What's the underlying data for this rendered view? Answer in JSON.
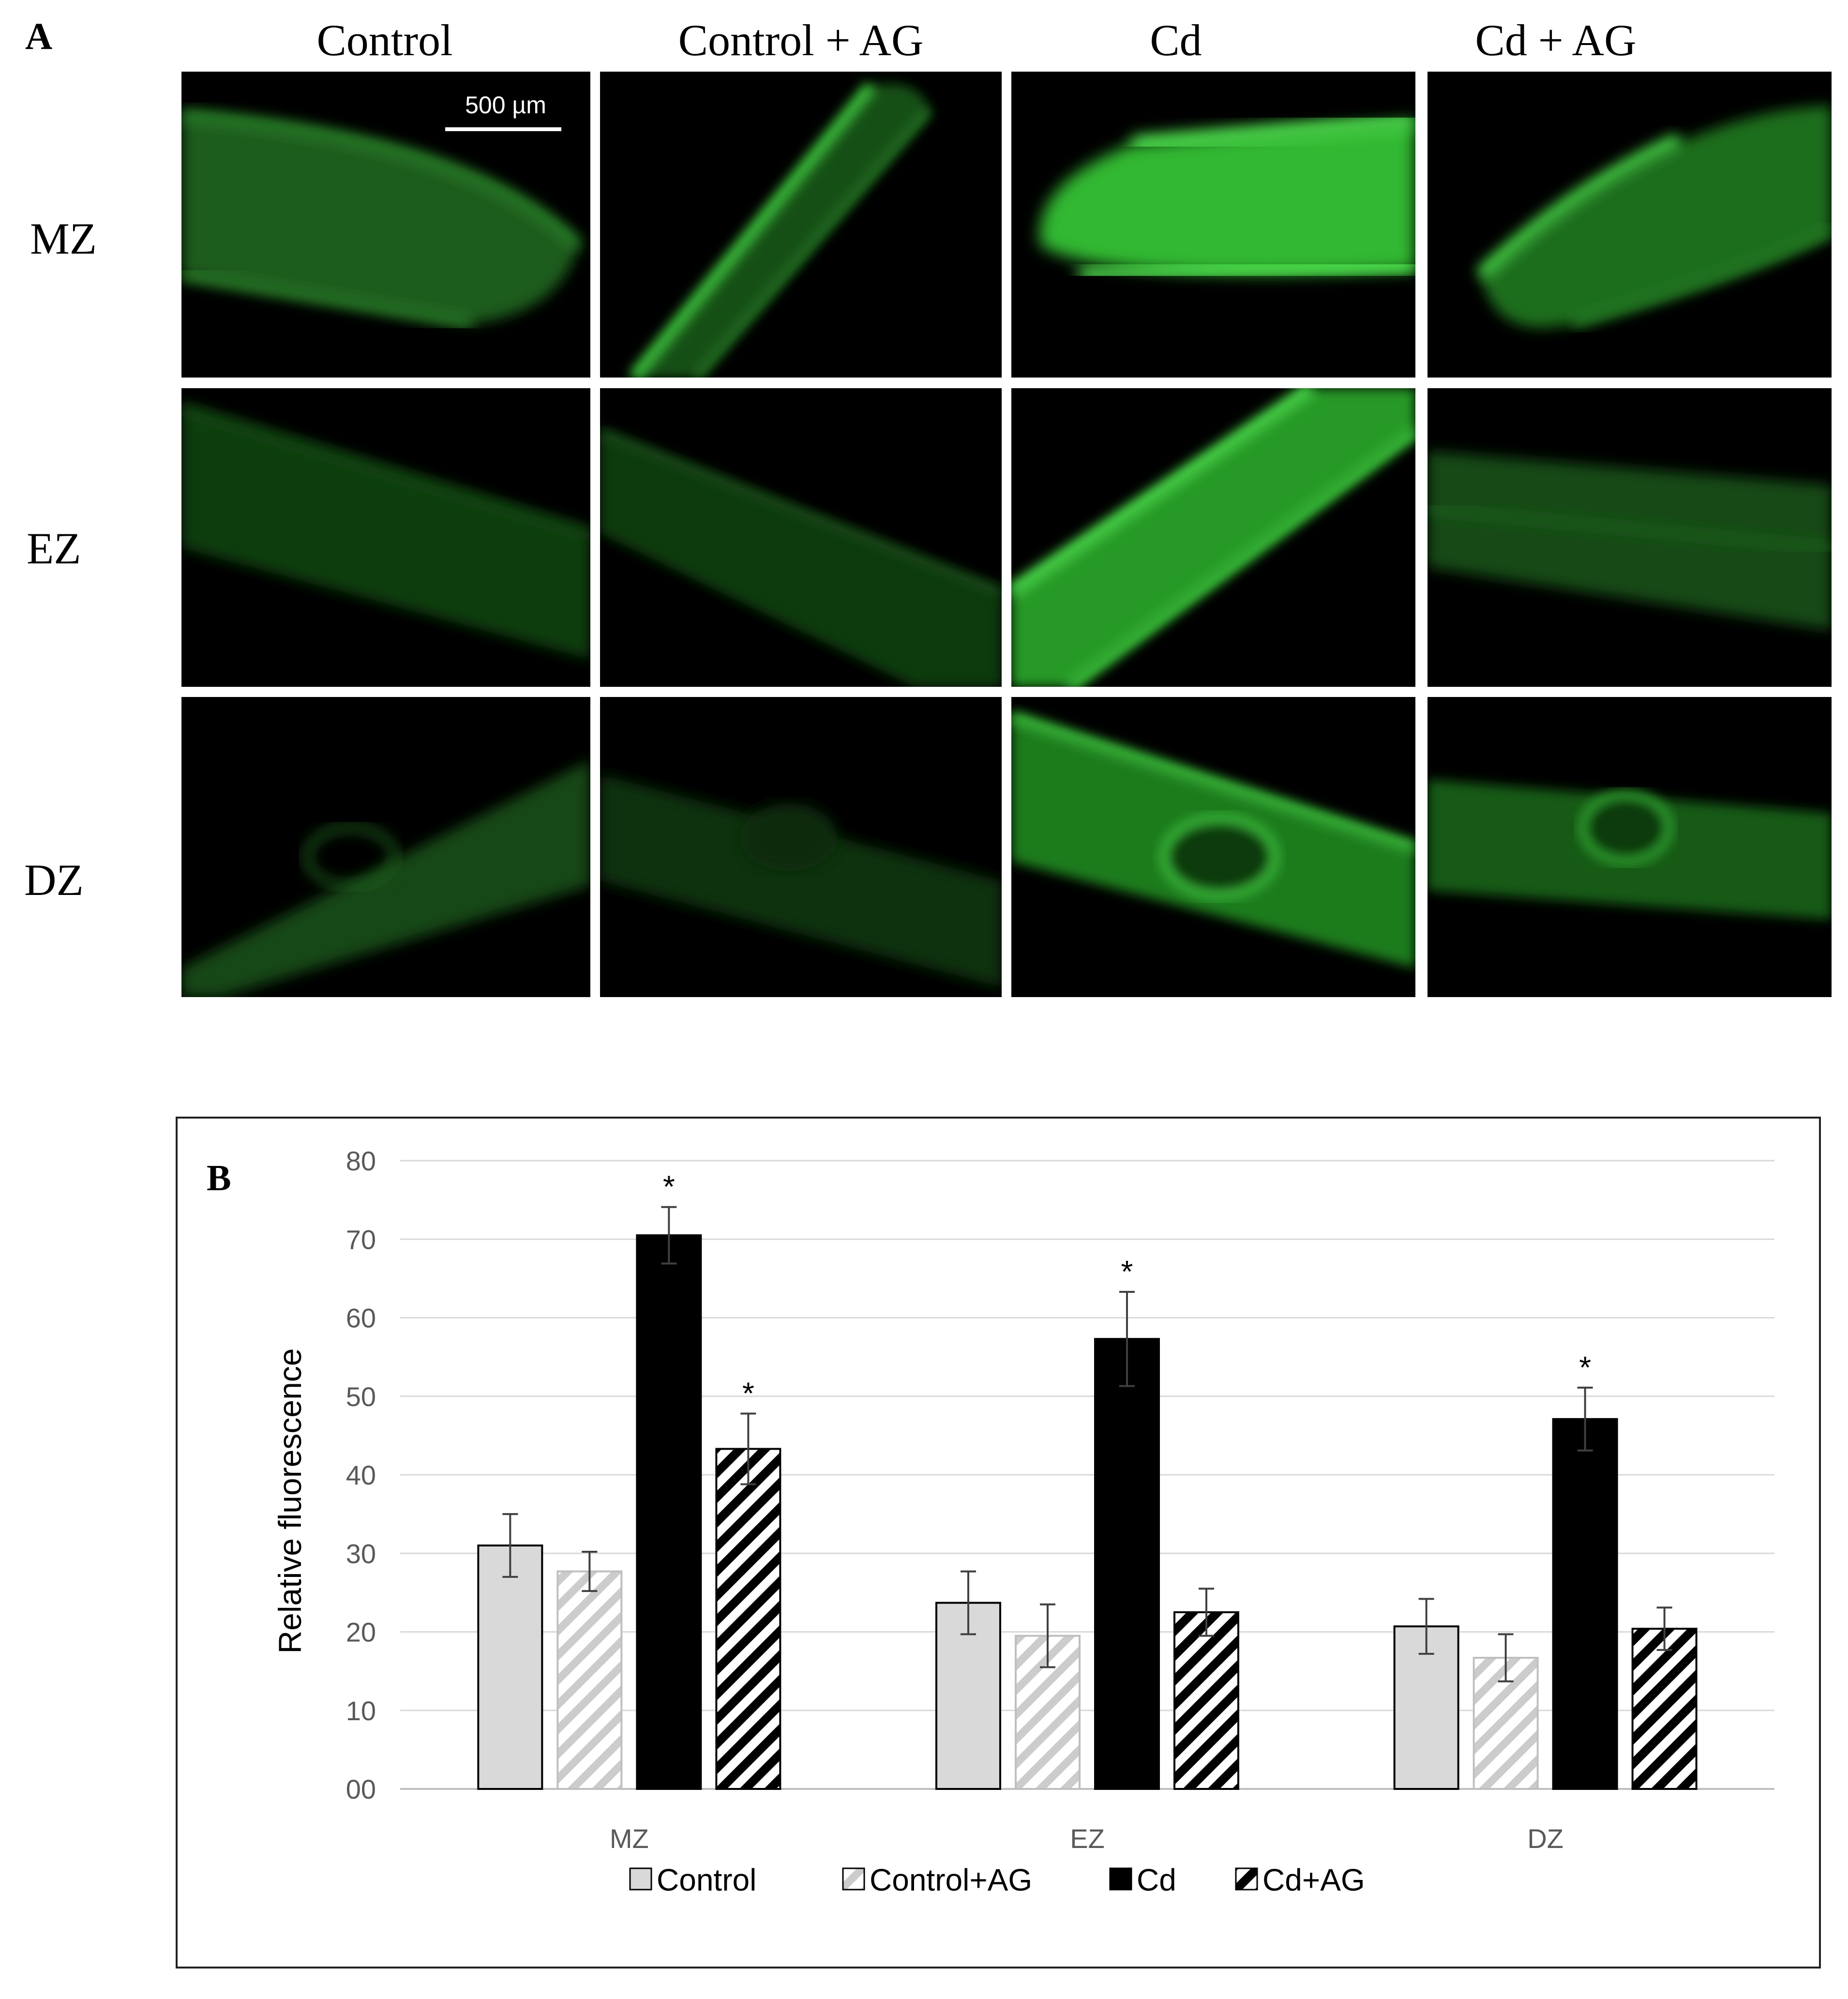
{
  "panel_a": {
    "letter": "A",
    "scale_bar": "500 µm",
    "columns": [
      "Control",
      "Control + AG",
      "Cd",
      "Cd + AG"
    ],
    "rows": [
      "MZ",
      "EZ",
      "DZ"
    ]
  },
  "colors": {
    "control": "#d9d9d9",
    "control_ag": "hatched light grey",
    "cd": "#000000",
    "cd_ag": "hatched black",
    "fluorescence": "#2fd62f"
  },
  "chart_data": {
    "type": "bar",
    "panel_letter": "B",
    "title": "",
    "xlabel": "",
    "ylabel": "Relative fluorescence",
    "ylim": [
      0,
      80
    ],
    "yticks": [
      "00",
      "10",
      "20",
      "30",
      "40",
      "50",
      "60",
      "70",
      "80"
    ],
    "grid": true,
    "legend_position": "bottom",
    "categories": [
      "MZ",
      "EZ",
      "DZ"
    ],
    "series": [
      {
        "name": "Control",
        "values": [
          31.0,
          23.7,
          20.7
        ],
        "errors": [
          4.0,
          4.0,
          3.5
        ],
        "significant": [
          false,
          false,
          false
        ]
      },
      {
        "name": "Control+AG",
        "values": [
          27.7,
          19.5,
          16.7
        ],
        "errors": [
          2.5,
          4.0,
          3.0
        ],
        "significant": [
          false,
          false,
          false
        ]
      },
      {
        "name": "Cd",
        "values": [
          70.5,
          57.3,
          47.1
        ],
        "errors": [
          3.6,
          6.0,
          4.0
        ],
        "significant": [
          true,
          true,
          true
        ]
      },
      {
        "name": "Cd+AG",
        "values": [
          43.3,
          22.5,
          20.4
        ],
        "errors": [
          4.5,
          3.0,
          2.7
        ],
        "significant": [
          true,
          false,
          false
        ]
      }
    ],
    "significance_marker": "*"
  }
}
